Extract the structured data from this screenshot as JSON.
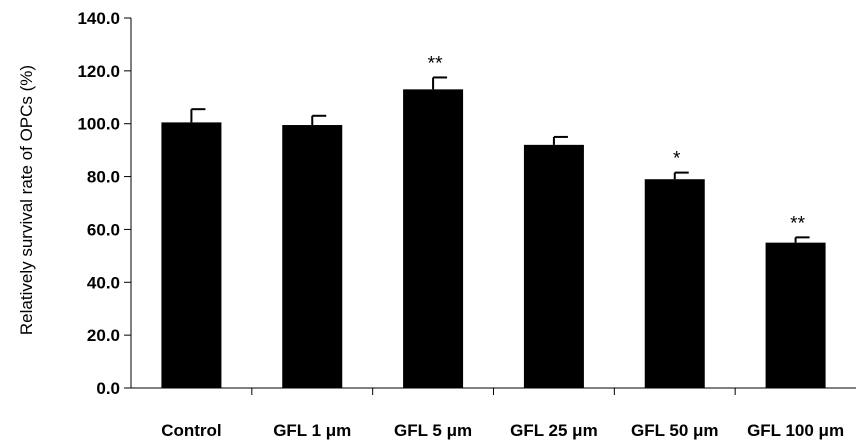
{
  "chart_data": {
    "type": "bar",
    "title": "",
    "xlabel": "",
    "ylabel": "Relatively survival rate of OPCs (%)",
    "categories": [
      "Control",
      "GFL 1 μm",
      "GFL 5  μm",
      "GFL 25 μm",
      "GFL 50  μm",
      "GFL 100 μm"
    ],
    "values": [
      100.5,
      99.5,
      113.0,
      92.0,
      79.0,
      55.0
    ],
    "error": [
      5.0,
      3.5,
      4.5,
      3.0,
      2.5,
      2.0
    ],
    "significance": [
      "",
      "",
      "**",
      "",
      "*",
      "**"
    ],
    "ylim": [
      0,
      140
    ],
    "yticks": [
      "0.0",
      "20.0",
      "40.0",
      "60.0",
      "80.0",
      "100.0",
      "120.0",
      "140.0"
    ],
    "grid": false,
    "legend": "none",
    "bar_color": "#000000"
  }
}
